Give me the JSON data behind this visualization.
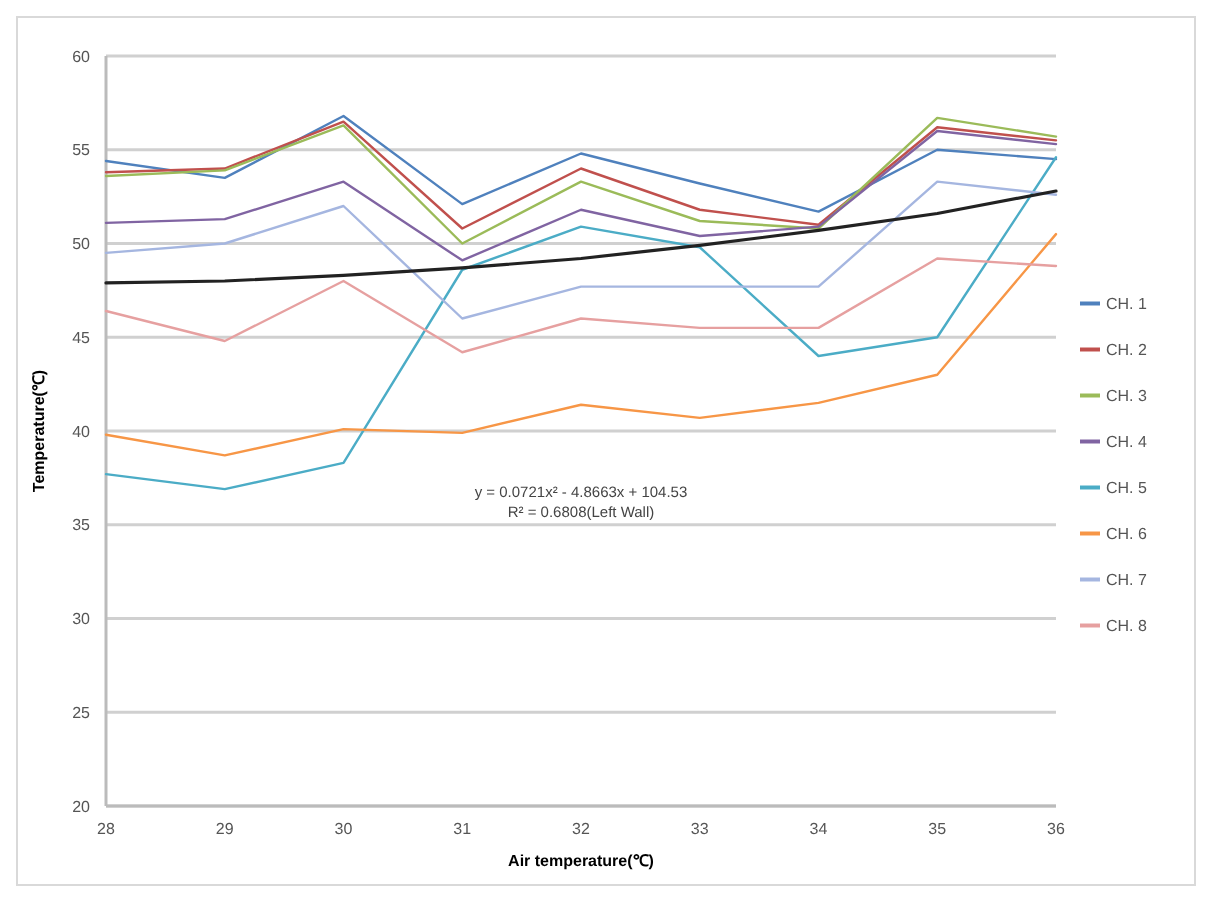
{
  "chart_data": {
    "type": "line",
    "xlabel": "Air temperature(℃)",
    "ylabel": "Temperature(℃)",
    "x": [
      28,
      29,
      30,
      31,
      32,
      33,
      34,
      35,
      36
    ],
    "xlim": [
      28,
      36
    ],
    "xticks": [
      28,
      29,
      30,
      31,
      32,
      33,
      34,
      35,
      36
    ],
    "ylim": [
      20,
      60
    ],
    "yticks": [
      20,
      25,
      30,
      35,
      40,
      45,
      50,
      55,
      60
    ],
    "grid": "y",
    "legend": "right",
    "marker": "none",
    "line_style": "solid",
    "series": [
      {
        "name": "CH. 1",
        "color": "#4f81bd",
        "values": [
          54.4,
          53.5,
          56.8,
          52.1,
          54.8,
          53.2,
          51.7,
          55.0,
          54.5
        ]
      },
      {
        "name": "CH. 2",
        "color": "#c0504d",
        "values": [
          53.8,
          54.0,
          56.5,
          50.8,
          54.0,
          51.8,
          51.0,
          56.2,
          55.5
        ]
      },
      {
        "name": "CH. 3",
        "color": "#9bbb59",
        "values": [
          53.6,
          53.9,
          56.3,
          50.0,
          53.3,
          51.2,
          50.8,
          56.7,
          55.7
        ]
      },
      {
        "name": "CH. 4",
        "color": "#8064a2",
        "values": [
          51.1,
          51.3,
          53.3,
          49.1,
          51.8,
          50.4,
          50.9,
          56.0,
          55.3
        ]
      },
      {
        "name": "CH. 5",
        "color": "#4bacc6",
        "values": [
          37.7,
          36.9,
          38.3,
          48.6,
          50.9,
          49.8,
          44.0,
          45.0,
          54.6
        ]
      },
      {
        "name": "CH. 6",
        "color": "#f79646",
        "values": [
          39.8,
          38.7,
          40.1,
          39.9,
          41.4,
          40.7,
          41.5,
          43.0,
          50.5
        ]
      },
      {
        "name": "CH. 7",
        "color": "#a5b6e0",
        "values": [
          49.5,
          50.0,
          52.0,
          46.0,
          47.7,
          47.7,
          47.7,
          53.3,
          52.6
        ]
      },
      {
        "name": "CH. 8",
        "color": "#e6a0a0",
        "values": [
          46.4,
          44.8,
          48.0,
          44.2,
          46.0,
          45.5,
          45.5,
          49.2,
          48.8
        ]
      },
      {
        "color": "#222222",
        "values": [
          47.9,
          48.0,
          48.3,
          48.7,
          49.2,
          49.9,
          50.7,
          51.6,
          52.8
        ]
      }
    ],
    "annotations": [
      "y = 0.0721x² - 4.8663x + 104.53",
      "R² = 0.6808(Left Wall)"
    ]
  }
}
